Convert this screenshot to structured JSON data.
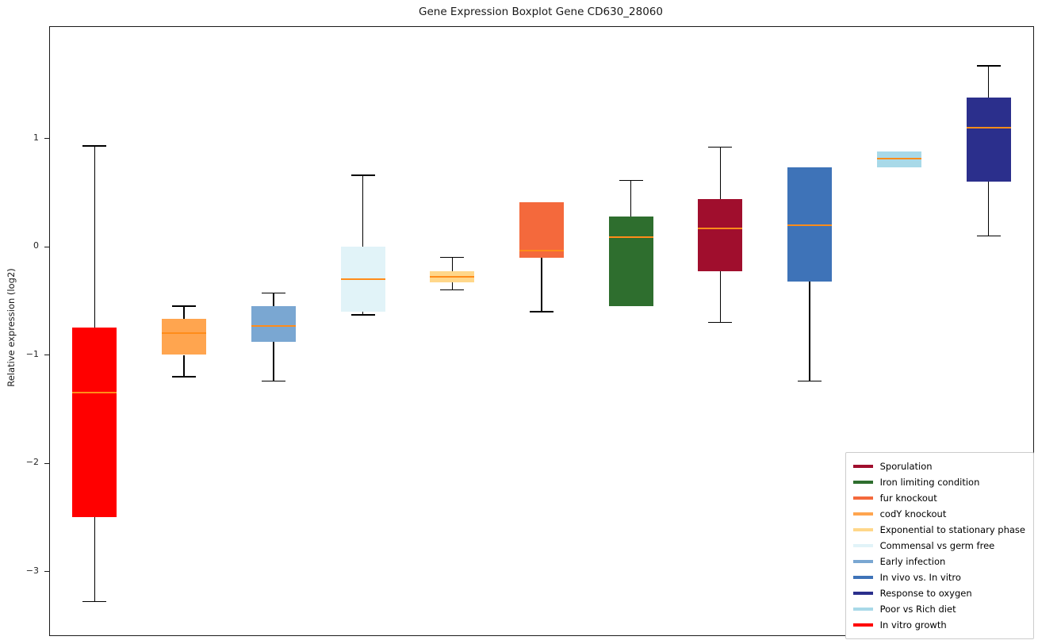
{
  "title": "Gene Expression Boxplot Gene CD630_28060",
  "ylabel": "Relative expression (log2)",
  "chart_data": {
    "type": "boxplot",
    "title": "Gene Expression Boxplot Gene CD630_28060",
    "xlabel": "",
    "ylabel": "Relative expression (log2)",
    "ylim": [
      -3.59,
      2.03
    ],
    "grid": false,
    "legend_position": "lower right",
    "median_color": "#ff8c1a",
    "whisker_color": "#000000",
    "yticks": [
      {
        "value": 1,
        "label": "1"
      },
      {
        "value": 0,
        "label": "0"
      },
      {
        "value": -1,
        "label": "−1"
      },
      {
        "value": -2,
        "label": "−2"
      },
      {
        "value": -3,
        "label": "−3"
      }
    ],
    "series": [
      {
        "name": "In vitro growth",
        "color": "#ff0000",
        "whisker_low": -3.28,
        "q1": -2.5,
        "median": -1.35,
        "q3": -0.75,
        "whisker_high": 0.93
      },
      {
        "name": "codY knockout",
        "color": "#ffa54f",
        "whisker_low": -1.2,
        "q1": -1.0,
        "median": -0.8,
        "q3": -0.67,
        "whisker_high": -0.55
      },
      {
        "name": "Early infection",
        "color": "#7aa7d2",
        "whisker_low": -1.24,
        "q1": -0.88,
        "median": -0.73,
        "q3": -0.55,
        "whisker_high": -0.43
      },
      {
        "name": "Commensal vs germ free",
        "color": "#e1f3f8",
        "whisker_low": -0.63,
        "q1": -0.6,
        "median": -0.3,
        "q3": 0.0,
        "whisker_high": 0.66
      },
      {
        "name": "Exponential to stationary phase",
        "color": "#ffd78a",
        "whisker_low": -0.4,
        "q1": -0.33,
        "median": -0.28,
        "q3": -0.23,
        "whisker_high": -0.1
      },
      {
        "name": "fur knockout",
        "color": "#f4693c",
        "whisker_low": -0.6,
        "q1": -0.1,
        "median": -0.04,
        "q3": 0.41,
        "whisker_high": 0.41
      },
      {
        "name": "Iron limiting condition",
        "color": "#2e6e2e",
        "whisker_low": -0.55,
        "q1": -0.55,
        "median": 0.09,
        "q3": 0.28,
        "whisker_high": 0.61
      },
      {
        "name": "Sporulation",
        "color": "#a00e2d",
        "whisker_low": -0.7,
        "q1": -0.23,
        "median": 0.17,
        "q3": 0.44,
        "whisker_high": 0.92
      },
      {
        "name": "In vivo vs. In vitro",
        "color": "#3e73b8",
        "whisker_low": -1.24,
        "q1": -0.32,
        "median": 0.2,
        "q3": 0.73,
        "whisker_high": 0.73
      },
      {
        "name": "Poor vs Rich diet",
        "color": "#a8d9e8",
        "whisker_low": 0.73,
        "q1": 0.73,
        "median": 0.81,
        "q3": 0.88,
        "whisker_high": 0.88
      },
      {
        "name": "Response to oxygen",
        "color": "#2b2f8c",
        "whisker_low": 0.1,
        "q1": 0.6,
        "median": 1.1,
        "q3": 1.38,
        "whisker_high": 1.67
      }
    ],
    "legend": [
      {
        "name": "Sporulation",
        "color": "#a00e2d"
      },
      {
        "name": "Iron limiting condition",
        "color": "#2e6e2e"
      },
      {
        "name": "fur knockout",
        "color": "#f4693c"
      },
      {
        "name": "codY knockout",
        "color": "#ffa54f"
      },
      {
        "name": "Exponential to stationary phase",
        "color": "#ffd78a"
      },
      {
        "name": "Commensal vs germ free",
        "color": "#e1f3f8"
      },
      {
        "name": "Early infection",
        "color": "#7aa7d2"
      },
      {
        "name": "In vivo vs. In vitro",
        "color": "#3e73b8"
      },
      {
        "name": "Response to oxygen",
        "color": "#2b2f8c"
      },
      {
        "name": "Poor vs Rich diet",
        "color": "#a8d9e8"
      },
      {
        "name": "In vitro growth",
        "color": "#ff0000"
      }
    ]
  }
}
